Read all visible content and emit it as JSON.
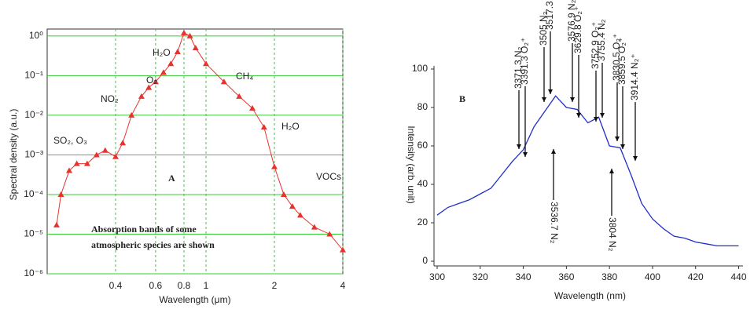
{
  "chart_data": [
    {
      "type": "scatter-line",
      "label": "A",
      "y_label": "Spectral density (a.u.)",
      "x_label": "Wavelength (μm)",
      "x_scale": "log",
      "y_scale": "log",
      "grid": true,
      "xlim": [
        0.2,
        4
      ],
      "ylim": [
        1e-06,
        1.5
      ],
      "xticks": [
        0.4,
        0.6,
        0.8,
        1,
        2,
        4
      ],
      "yticks": [
        {
          "value": 1,
          "label": "10⁰"
        },
        {
          "value": 0.1,
          "label": "10⁻¹"
        },
        {
          "value": 0.01,
          "label": "10⁻²"
        },
        {
          "value": 0.001,
          "label": "10⁻³"
        },
        {
          "value": 0.0001,
          "label": "10⁻⁴"
        },
        {
          "value": 1e-05,
          "label": "10⁻⁵"
        },
        {
          "value": 1e-06,
          "label": "10⁻⁶"
        }
      ],
      "series": [
        {
          "color": "#e8322c",
          "x": [
            0.22,
            0.23,
            0.25,
            0.27,
            0.3,
            0.33,
            0.36,
            0.4,
            0.43,
            0.47,
            0.52,
            0.56,
            0.6,
            0.65,
            0.7,
            0.75,
            0.8,
            0.85,
            0.9,
            1.0,
            1.2,
            1.4,
            1.6,
            1.8,
            2.0,
            2.2,
            2.4,
            2.6,
            3.0,
            3.5,
            4.0
          ],
          "values": [
            1.7e-05,
            0.0001,
            0.0004,
            0.0006,
            0.0006,
            0.001,
            0.0013,
            0.0009,
            0.002,
            0.01,
            0.03,
            0.05,
            0.07,
            0.12,
            0.2,
            0.4,
            1.2,
            1.0,
            0.5,
            0.2,
            0.07,
            0.03,
            0.015,
            0.005,
            0.0005,
            0.0001,
            5e-05,
            3e-05,
            1.5e-05,
            1e-05,
            4e-06
          ]
        }
      ],
      "annotations": [
        "SO₂, O₃",
        "NO₂",
        "O₂",
        "H₂O",
        "CH₄",
        "H₂O",
        "VOCs"
      ],
      "caption": [
        "Absorption bands of some",
        "atmospheric species are shown"
      ]
    },
    {
      "type": "line",
      "label": "B",
      "y_label": "Intensity (arb. unit)",
      "x_label": "Wavelength (nm)",
      "xlim": [
        300,
        442
      ],
      "ylim": [
        0,
        100
      ],
      "xticks": [
        300,
        320,
        340,
        360,
        380,
        400,
        420,
        440
      ],
      "yticks": [
        0,
        20,
        40,
        60,
        80,
        100
      ],
      "series": [
        {
          "color": "#1f2fc8",
          "x": [
            300,
            305,
            310,
            315,
            320,
            325,
            330,
            335,
            340,
            345,
            350,
            355,
            360,
            365,
            370,
            375,
            380,
            385,
            390,
            395,
            400,
            405,
            410,
            415,
            420,
            425,
            430,
            435,
            440
          ],
          "values": [
            24,
            28,
            30,
            32,
            35,
            38,
            45,
            52,
            58,
            70,
            78,
            86,
            80,
            79,
            72,
            75,
            60,
            59,
            45,
            30,
            22,
            17,
            13,
            12,
            10,
            9,
            8,
            8,
            8
          ]
        }
      ],
      "annotations": [
        "3371.3 N₂",
        "3391.3 O₂⁺",
        "3505 N₂",
        "3517.3 O₂⁺",
        "3576.9 N₂",
        "3629.8 O₂⁺",
        "3752.9 O₂⁺",
        "3755.4 N₂",
        "3830.5 O₂⁺",
        "3859.5 O₂⁺",
        "3914.4 N₂⁺",
        "3536.7 N₂",
        "3804 N₂"
      ]
    }
  ]
}
